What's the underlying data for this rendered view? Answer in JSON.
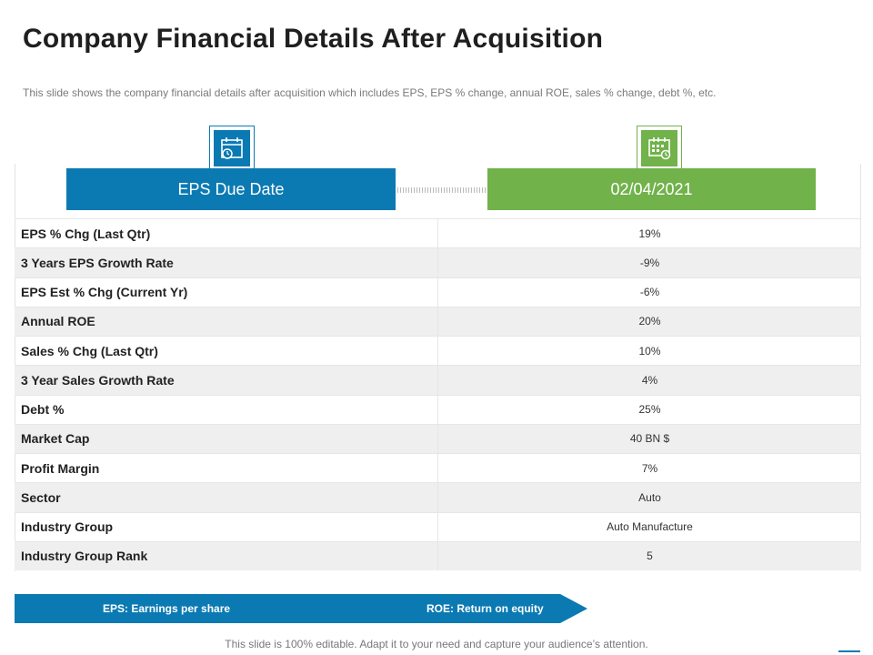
{
  "title": "Company Financial Details After Acquisition",
  "subtitle": "This slide shows the company financial details after acquisition which includes EPS, EPS % change, annual ROE, sales % change, debt %, etc.",
  "header": {
    "left_label": "EPS Due Date",
    "right_label": "02/04/2021",
    "left_icon": "calendar-clock-icon",
    "right_icon": "calendar-grid-icon",
    "left_color": "#0b7ab3",
    "right_color": "#71b24a"
  },
  "rows": [
    {
      "label": "EPS % Chg (Last Qtr)",
      "value": "19%"
    },
    {
      "label": "3 Years EPS Growth Rate",
      "value": "-9%"
    },
    {
      "label": "EPS Est % Chg (Current Yr)",
      "value": "-6%"
    },
    {
      "label": "Annual ROE",
      "value": "20%"
    },
    {
      "label": "Sales % Chg (Last Qtr)",
      "value": "10%"
    },
    {
      "label": "3 Year Sales Growth Rate",
      "value": "4%"
    },
    {
      "label": "Debt %",
      "value": "25%"
    },
    {
      "label": "Market Cap",
      "value": "40 BN $"
    },
    {
      "label": "Profit Margin",
      "value": "7%"
    },
    {
      "label": "Sector",
      "value": "Auto"
    },
    {
      "label": "Industry Group",
      "value": "Auto Manufacture"
    },
    {
      "label": "Industry Group Rank",
      "value": "5"
    }
  ],
  "banner": {
    "left": "EPS: Earnings per share",
    "right": "ROE: Return on equity"
  },
  "footer": "This slide is 100% editable. Adapt it to your need and capture your audience’s attention."
}
